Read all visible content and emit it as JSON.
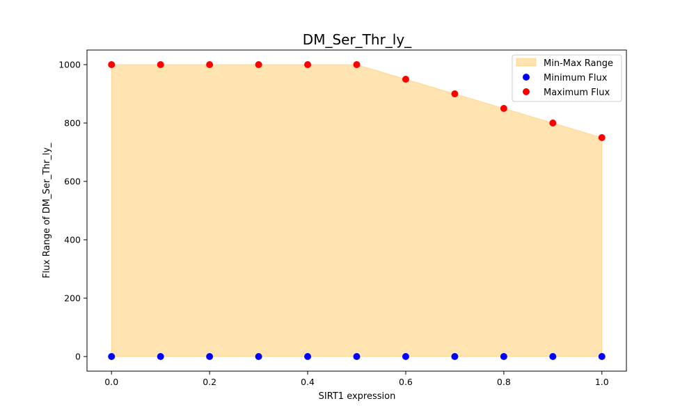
{
  "chart_data": {
    "type": "scatter",
    "title": "DM_Ser_Thr_ly_",
    "xlabel": "SIRT1 expression",
    "ylabel": "Flux Range of DM_Ser_Thr_ly_",
    "x": [
      0.0,
      0.1,
      0.2,
      0.3,
      0.4,
      0.5,
      0.6,
      0.7,
      0.8,
      0.9,
      1.0
    ],
    "series": [
      {
        "name": "Minimum Flux",
        "kind": "scatter",
        "color": "#0000ff",
        "values": [
          0,
          0,
          0,
          0,
          0,
          0,
          0,
          0,
          0,
          0,
          0
        ]
      },
      {
        "name": "Maximum Flux",
        "kind": "scatter",
        "color": "#ff0000",
        "values": [
          1000,
          1000,
          1000,
          1000,
          1000,
          1000,
          950,
          900,
          850,
          800,
          750
        ]
      }
    ],
    "range_band": {
      "name": "Min-Max Range",
      "fill_color": "#ffa500",
      "fill_opacity": 0.3
    },
    "xlim": [
      -0.05,
      1.05
    ],
    "ylim": [
      -50,
      1050
    ],
    "xticks": [
      "0.0",
      "0.2",
      "0.4",
      "0.6",
      "0.8",
      "1.0"
    ],
    "yticks": [
      "0",
      "200",
      "400",
      "600",
      "800",
      "1000"
    ],
    "grid": false,
    "legend_position": "top-right"
  }
}
